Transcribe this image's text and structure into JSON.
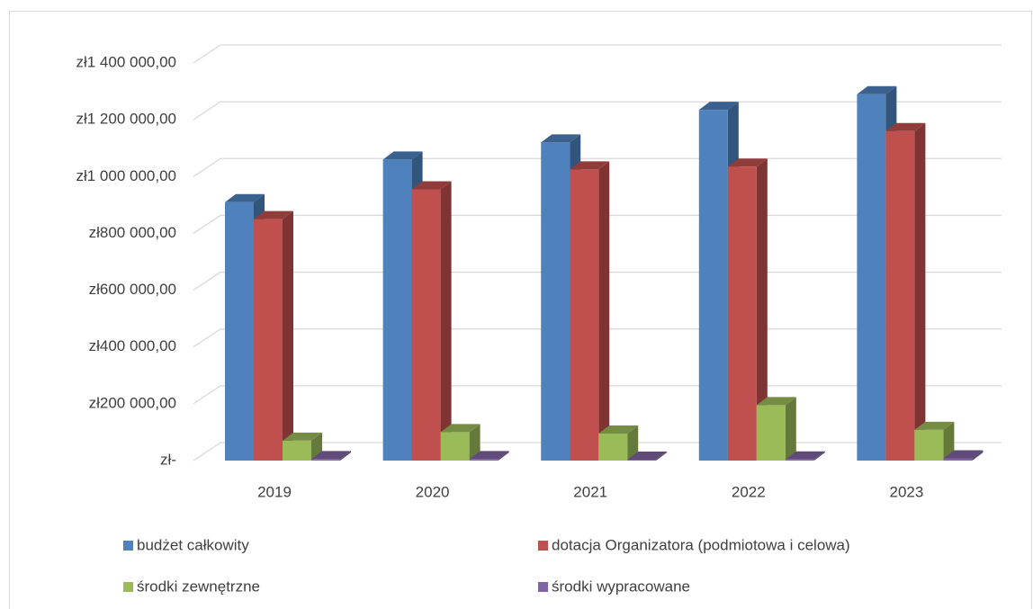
{
  "chart_data": {
    "type": "bar3d",
    "categories": [
      "2019",
      "2020",
      "2021",
      "2022",
      "2023"
    ],
    "series": [
      {
        "name": "budżet całkowity",
        "color": "#4f81bd",
        "values": [
          910000,
          1060000,
          1120000,
          1235000,
          1290000
        ]
      },
      {
        "name": "dotacja Organizatora (podmiotowa i celowa)",
        "color": "#c0504d",
        "values": [
          850000,
          955000,
          1025000,
          1035000,
          1160000
        ]
      },
      {
        "name": "środki zewnętrzne",
        "color": "#9bbb59",
        "values": [
          70000,
          100000,
          95000,
          195000,
          108000
        ]
      },
      {
        "name": "środki wypracowane",
        "color": "#8064a2",
        "values": [
          5000,
          5000,
          3000,
          4000,
          8000
        ]
      }
    ],
    "ylim": [
      0,
      1400000
    ],
    "yticks": [
      {
        "value": 0,
        "label": "zł-"
      },
      {
        "value": 200000,
        "label": "zł200 000,00"
      },
      {
        "value": 400000,
        "label": "zł400 000,00"
      },
      {
        "value": 600000,
        "label": "zł600 000,00"
      },
      {
        "value": 800000,
        "label": "zł800 000,00"
      },
      {
        "value": 1000000,
        "label": "zł1 000 000,00"
      },
      {
        "value": 1200000,
        "label": "zł1 200 000,00"
      },
      {
        "value": 1400000,
        "label": "zł1 400 000,00"
      }
    ],
    "grid": true,
    "legend": "bottom"
  }
}
